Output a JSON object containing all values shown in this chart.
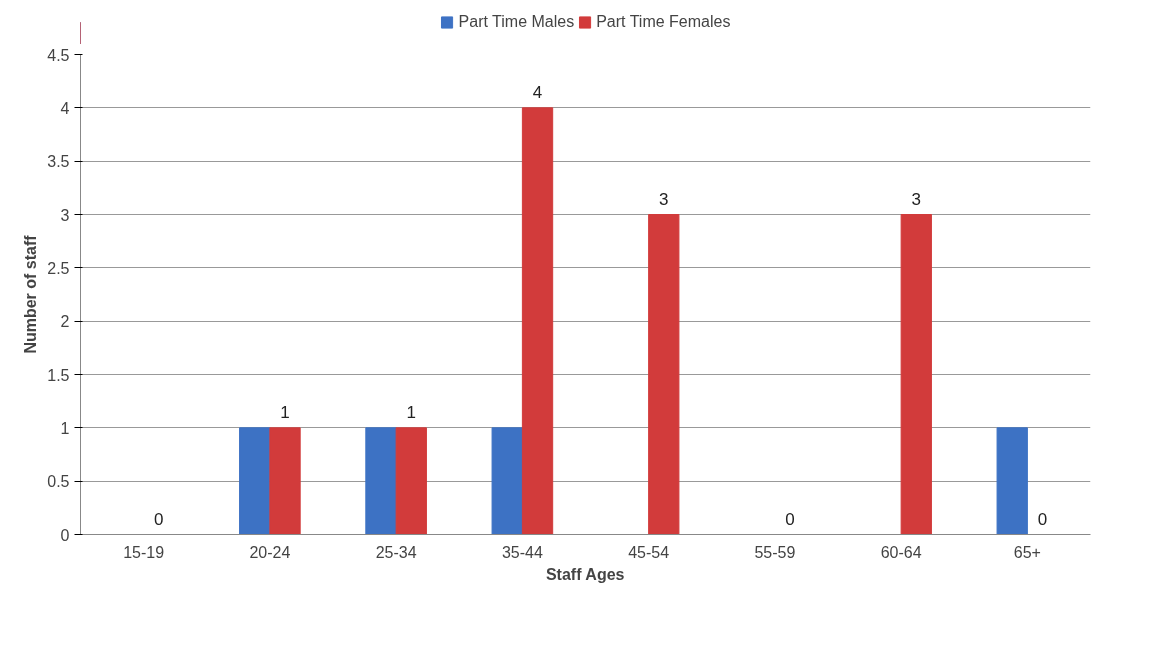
{
  "chart_data": {
    "type": "bar",
    "xlabel": "Staff Ages",
    "ylabel": "Number of staff",
    "categories": [
      "15-19",
      "20-24",
      "25-34",
      "35-44",
      "45-54",
      "55-59",
      "60-64",
      "65+"
    ],
    "series": [
      {
        "name": "Part Time Males",
        "color": "#3d72c4",
        "values": [
          0,
          1,
          1,
          1,
          0,
          0,
          0,
          1
        ]
      },
      {
        "name": "Part Time Females",
        "color": "#d23b3b",
        "values": [
          0,
          1,
          1,
          4,
          3,
          0,
          3,
          0
        ],
        "value_labels": [
          "0",
          "1",
          "1",
          "4",
          "3",
          "0",
          "3",
          "0"
        ]
      }
    ],
    "ylim": [
      0,
      4.5
    ],
    "yticks": [
      0,
      0.5,
      1,
      1.5,
      2,
      2.5,
      3,
      3.5,
      4,
      4.5
    ],
    "grid": "y",
    "legend": "top"
  }
}
